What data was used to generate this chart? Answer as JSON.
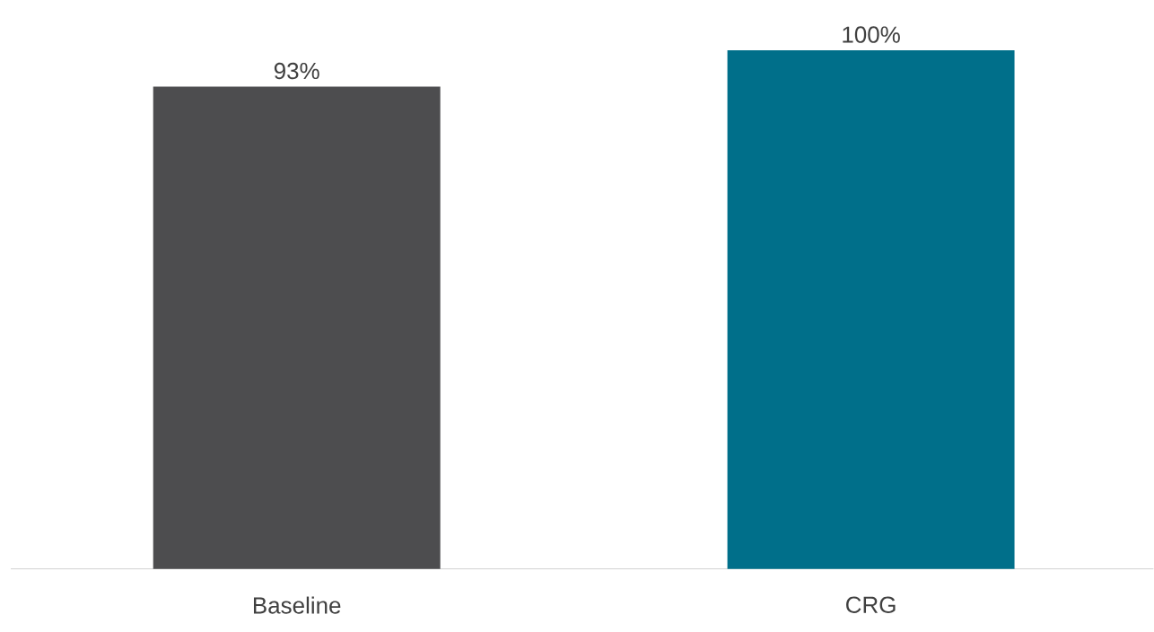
{
  "chart_data": {
    "type": "bar",
    "categories": [
      "Baseline",
      "CRG"
    ],
    "values": [
      93,
      100
    ],
    "colors": [
      "#4d4d4f",
      "#006f8a"
    ],
    "value_labels": [
      "93%",
      "100%"
    ]
  }
}
